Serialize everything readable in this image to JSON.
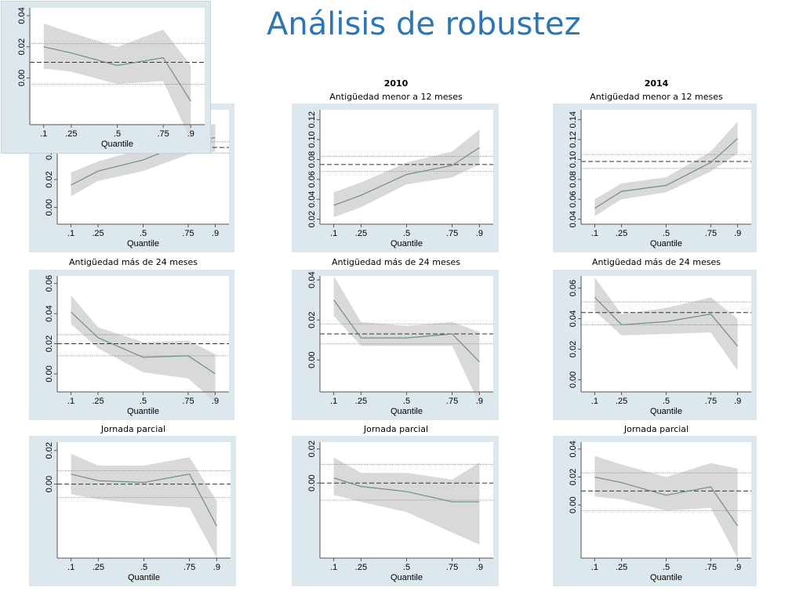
{
  "slide": {
    "title": "Análisis de robustez"
  },
  "columns": [
    {
      "year": "2010"
    },
    {
      "year": "2014"
    }
  ],
  "colors": {
    "band": "#d9d9d9",
    "line": "#6d8f86",
    "axis": "#555555",
    "panel_bg": "#dde7ee"
  },
  "chart_data": [
    {
      "type": "line",
      "title": "",
      "xlabel": "Quantile",
      "ylabel": "",
      "x": [
        0.1,
        0.25,
        0.5,
        0.75,
        0.9
      ],
      "xticks": [
        ".1",
        ".25",
        ".5",
        ".75",
        ".9"
      ],
      "yticks": [
        "0.00",
        "0.02",
        "0.04"
      ],
      "ytick_values": [
        0.0,
        0.02,
        0.04
      ],
      "ylim": [
        -0.03,
        0.045
      ],
      "estimate": [
        0.02,
        0.016,
        0.008,
        0.013,
        -0.015
      ],
      "ci_lower": [
        0.006,
        0.004,
        -0.004,
        -0.002,
        -0.04
      ],
      "ci_upper": [
        0.035,
        0.029,
        0.02,
        0.031,
        0.008
      ],
      "ols": 0.01,
      "ols_ci": [
        -0.004,
        0.022
      ]
    },
    {
      "type": "line",
      "title": "",
      "xlabel": "Quantile",
      "ylabel": "",
      "x": [
        0.1,
        0.25,
        0.5,
        0.75,
        0.9
      ],
      "xticks": [
        ".1",
        ".25",
        ".5",
        ".75",
        ".9"
      ],
      "yticks": [
        "0.00",
        "0.02",
        "0.04"
      ],
      "ytick_values": [
        0.0,
        0.02,
        0.04
      ],
      "ylim": [
        -0.012,
        0.07
      ],
      "estimate": [
        0.016,
        0.026,
        0.034,
        0.047,
        0.05
      ],
      "ci_lower": [
        0.008,
        0.019,
        0.026,
        0.038,
        0.04
      ],
      "ci_upper": [
        0.025,
        0.033,
        0.042,
        0.055,
        0.06
      ],
      "ols": 0.043,
      "ols_ci": [
        0.039,
        0.047
      ]
    },
    {
      "type": "line",
      "title": "Antigüedad menor a 12 meses",
      "xlabel": "Quantile",
      "ylabel": "",
      "x": [
        0.1,
        0.25,
        0.5,
        0.75,
        0.9
      ],
      "xticks": [
        ".1",
        ".25",
        ".5",
        ".75",
        ".9"
      ],
      "yticks": [
        "0.02",
        "0.04",
        "0.06",
        "0.08",
        "0.10",
        "0.12"
      ],
      "ytick_values": [
        0.02,
        0.04,
        0.06,
        0.08,
        0.1,
        0.12
      ],
      "ylim": [
        0.015,
        0.13
      ],
      "estimate": [
        0.034,
        0.044,
        0.065,
        0.074,
        0.092
      ],
      "ci_lower": [
        0.022,
        0.032,
        0.055,
        0.062,
        0.075
      ],
      "ci_upper": [
        0.047,
        0.057,
        0.077,
        0.088,
        0.11
      ],
      "ols": 0.075,
      "ols_ci": [
        0.068,
        0.083
      ]
    },
    {
      "type": "line",
      "title": "Antigüedad menor a 12 meses",
      "xlabel": "Quantile",
      "ylabel": "",
      "x": [
        0.1,
        0.25,
        0.5,
        0.75,
        0.9
      ],
      "xticks": [
        ".1",
        ".25",
        ".5",
        ".75",
        ".9"
      ],
      "yticks": [
        "0.04",
        "0.06",
        "0.08",
        "0.10",
        "0.12",
        "0.14"
      ],
      "ytick_values": [
        0.04,
        0.06,
        0.08,
        0.1,
        0.12,
        0.14
      ],
      "ylim": [
        0.035,
        0.15
      ],
      "estimate": [
        0.051,
        0.068,
        0.074,
        0.097,
        0.121
      ],
      "ci_lower": [
        0.043,
        0.06,
        0.067,
        0.088,
        0.106
      ],
      "ci_upper": [
        0.06,
        0.076,
        0.082,
        0.108,
        0.138
      ],
      "ols": 0.098,
      "ols_ci": [
        0.091,
        0.105
      ]
    },
    {
      "type": "line",
      "title": "Antigüedad más de 24 meses",
      "xlabel": "Quantile",
      "ylabel": "",
      "x": [
        0.1,
        0.25,
        0.5,
        0.75,
        0.9
      ],
      "xticks": [
        ".1",
        ".25",
        ".5",
        ".75",
        ".9"
      ],
      "yticks": [
        "0.00",
        "0.02",
        "0.04",
        "0.06"
      ],
      "ytick_values": [
        0.0,
        0.02,
        0.04,
        0.06
      ],
      "ylim": [
        -0.012,
        0.065
      ],
      "estimate": [
        0.041,
        0.024,
        0.011,
        0.012,
        0.0
      ],
      "ci_lower": [
        0.033,
        0.017,
        0.001,
        -0.003,
        -0.019
      ],
      "ci_upper": [
        0.052,
        0.031,
        0.021,
        0.022,
        0.013
      ],
      "ols": 0.02,
      "ols_ci": [
        0.012,
        0.026
      ]
    },
    {
      "type": "line",
      "title": "Antigüedad más de 24 meses",
      "xlabel": "Quantile",
      "ylabel": "",
      "x": [
        0.1,
        0.25,
        0.5,
        0.75,
        0.9
      ],
      "xticks": [
        ".1",
        ".25",
        ".5",
        ".75",
        ".9"
      ],
      "yticks": [
        "0.00",
        "0.02",
        "0.04"
      ],
      "ytick_values": [
        0.0,
        0.02,
        0.04
      ],
      "ylim": [
        -0.016,
        0.042
      ],
      "estimate": [
        0.03,
        0.011,
        0.011,
        0.013,
        -0.001
      ],
      "ci_lower": [
        0.022,
        0.007,
        0.007,
        0.007,
        -0.022
      ],
      "ci_upper": [
        0.042,
        0.019,
        0.017,
        0.019,
        0.014
      ],
      "ols": 0.013,
      "ols_ci": [
        0.008,
        0.018
      ]
    },
    {
      "type": "line",
      "title": "Antigüedad más de 24 meses",
      "xlabel": "Quantile",
      "ylabel": "",
      "x": [
        0.1,
        0.25,
        0.5,
        0.75,
        0.9
      ],
      "xticks": [
        ".1",
        ".25",
        ".5",
        ".75",
        ".9"
      ],
      "yticks": [
        "0.00",
        "0.02",
        "0.04",
        "0.06"
      ],
      "ytick_values": [
        0.0,
        0.02,
        0.04,
        0.06
      ],
      "ylim": [
        -0.008,
        0.068
      ],
      "estimate": [
        0.054,
        0.036,
        0.038,
        0.043,
        0.022
      ],
      "ci_lower": [
        0.045,
        0.029,
        0.03,
        0.031,
        0.006
      ],
      "ci_upper": [
        0.067,
        0.043,
        0.047,
        0.054,
        0.04
      ],
      "ols": 0.044,
      "ols_ci": [
        0.036,
        0.051
      ]
    },
    {
      "type": "line",
      "title": "Jornada parcial",
      "xlabel": "Quantile",
      "ylabel": "",
      "x": [
        0.1,
        0.25,
        0.5,
        0.75,
        0.9
      ],
      "xticks": [
        ".1",
        ".25",
        ".5",
        ".75",
        ".9"
      ],
      "yticks": [
        "0.00",
        "0.02"
      ],
      "ytick_values": [
        0.0,
        0.02
      ],
      "ylim": [
        -0.044,
        0.025
      ],
      "estimate": [
        0.006,
        0.002,
        0.001,
        0.006,
        -0.025
      ],
      "ci_lower": [
        -0.006,
        -0.009,
        -0.012,
        -0.014,
        -0.044
      ],
      "ci_upper": [
        0.018,
        0.011,
        0.011,
        0.016,
        -0.01
      ],
      "ols": 0.0,
      "ols_ci": [
        -0.008,
        0.008
      ]
    },
    {
      "type": "line",
      "title": "Jornada parcial",
      "xlabel": "Quantile",
      "ylabel": "",
      "x": [
        0.1,
        0.25,
        0.5,
        0.75,
        0.9
      ],
      "xticks": [
        ".1",
        ".25",
        ".5",
        ".75",
        ".9"
      ],
      "yticks": [
        "0.00",
        "0.02"
      ],
      "ytick_values": [
        0.0,
        0.02
      ],
      "ylim": [
        -0.044,
        0.024
      ],
      "estimate": [
        0.003,
        -0.002,
        -0.005,
        -0.011,
        -0.011
      ],
      "ci_lower": [
        -0.007,
        -0.011,
        -0.017,
        -0.029,
        -0.036
      ],
      "ci_upper": [
        0.015,
        0.006,
        0.006,
        0.002,
        0.012
      ],
      "ols": 0.0,
      "ols_ci": [
        -0.01,
        0.011
      ]
    },
    {
      "type": "line",
      "title": "Jornada parcial",
      "xlabel": "Quantile",
      "ylabel": "",
      "x": [
        0.1,
        0.25,
        0.5,
        0.75,
        0.9
      ],
      "xticks": [
        ".1",
        ".25",
        ".5",
        ".75",
        ".9"
      ],
      "yticks": [
        "0.00",
        "0.02",
        "0.04"
      ],
      "ytick_values": [
        0.0,
        0.02,
        0.04
      ],
      "ylim": [
        -0.038,
        0.045
      ],
      "estimate": [
        0.02,
        0.016,
        0.007,
        0.013,
        -0.015
      ],
      "ci_lower": [
        0.006,
        0.004,
        -0.004,
        -0.002,
        -0.038
      ],
      "ci_upper": [
        0.035,
        0.029,
        0.02,
        0.03,
        0.026
      ],
      "ols": 0.01,
      "ols_ci": [
        -0.004,
        0.023
      ]
    }
  ]
}
